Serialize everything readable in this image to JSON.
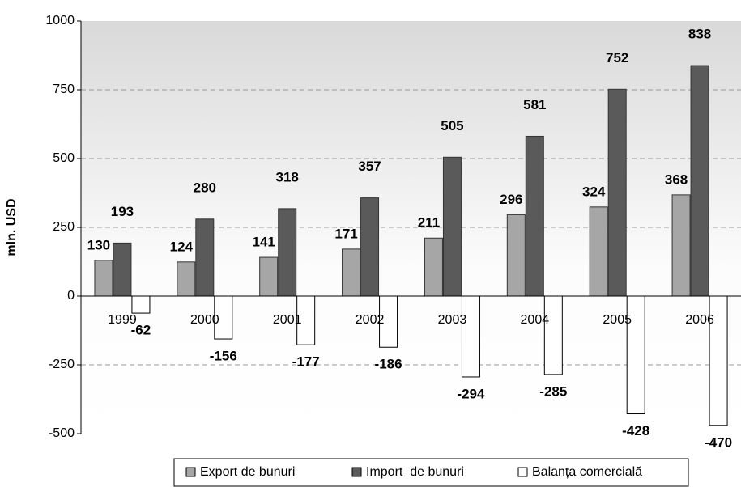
{
  "chart_data": {
    "type": "bar",
    "y_axis_label": "mln. USD",
    "categories": [
      "1999",
      "2000",
      "2001",
      "2002",
      "2003",
      "2004",
      "2005",
      "2006"
    ],
    "series": [
      {
        "name": "Export de bunuri",
        "color": "#a6a6a6",
        "values": [
          130,
          124,
          141,
          171,
          211,
          296,
          324,
          368
        ]
      },
      {
        "name": "Import  de bunuri",
        "color": "#5a5a5a",
        "values": [
          193,
          280,
          318,
          357,
          505,
          581,
          752,
          838
        ]
      },
      {
        "name": "Balanța comercială",
        "color": "#ffffff",
        "values": [
          -62,
          -156,
          -177,
          -186,
          -294,
          -285,
          -428,
          -470
        ]
      }
    ],
    "ylim": [
      -500,
      1000
    ],
    "yticks": [
      -500,
      -250,
      0,
      250,
      500,
      750,
      1000
    ],
    "grid": true,
    "legend": "bottom"
  }
}
